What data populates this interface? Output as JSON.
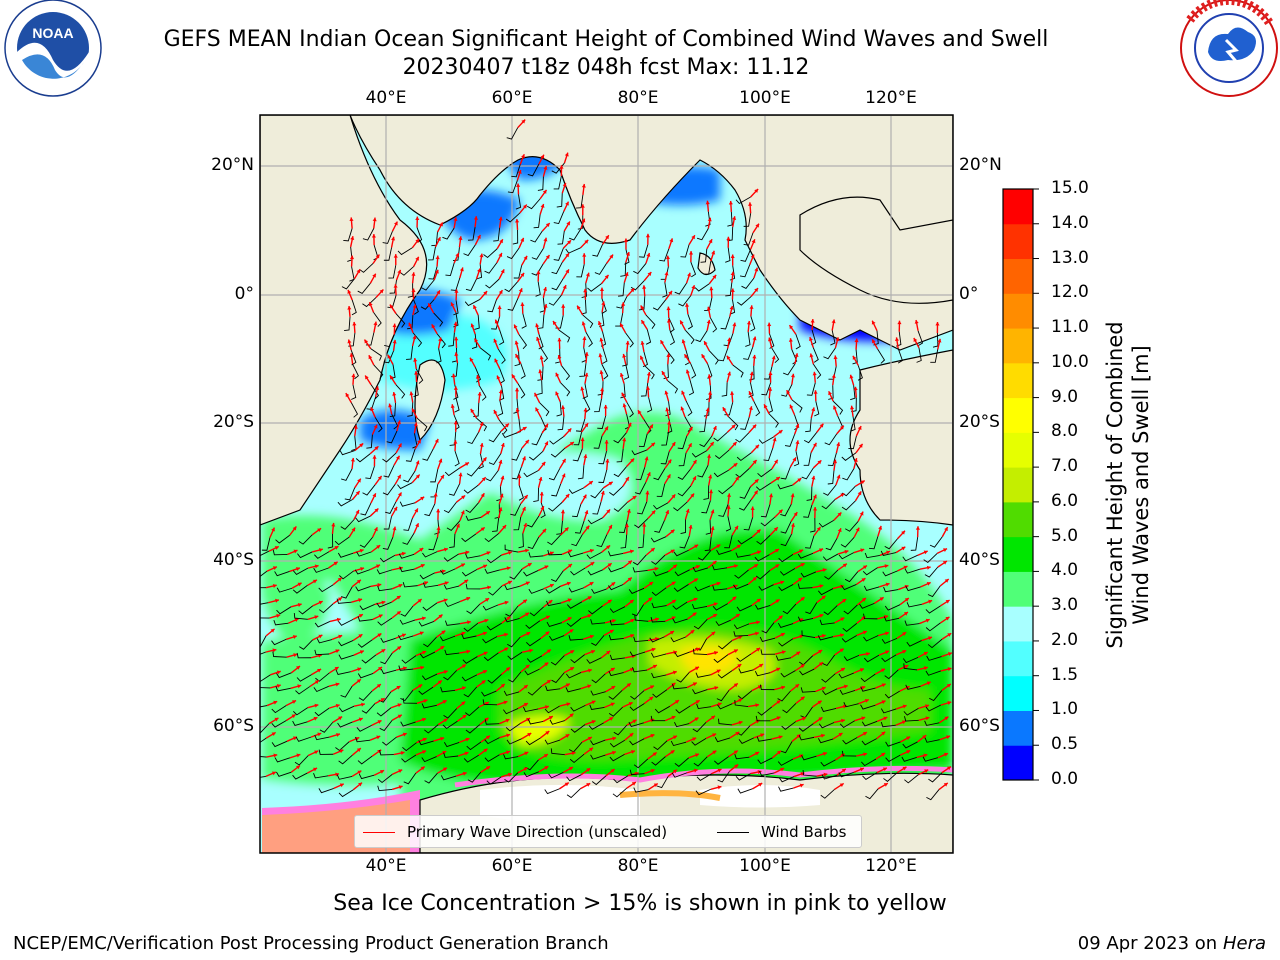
{
  "title": {
    "line1": "GEFS MEAN Indian Ocean Significant Height of Combined Wind Waves and Swell",
    "line2": "20230407 t18z 048h fcst   Max: 11.12"
  },
  "logos": {
    "left": "noaa-logo",
    "right": "national-weather-service-logo"
  },
  "map": {
    "lon_ticks": [
      "40°E",
      "60°E",
      "80°E",
      "100°E",
      "120°E"
    ],
    "lat_ticks": [
      "20°N",
      "0°",
      "20°S",
      "40°S",
      "60°S"
    ],
    "lon_range": [
      20,
      130
    ],
    "lat_range": [
      -75,
      27
    ],
    "land_color": "#efedda",
    "grid_color": "#b0b0b0"
  },
  "legend": {
    "wave_label": "Primary Wave Direction (unscaled)",
    "barb_label": "Wind Barbs",
    "wave_color": "#ff0000",
    "barb_color": "#000000"
  },
  "colorbar": {
    "label_line1": "Significant Height of Combined",
    "label_line2": "Wind Waves and Swell [m]",
    "ticks": [
      "0.0",
      "0.5",
      "1.0",
      "1.5",
      "2.0",
      "3.0",
      "4.0",
      "5.0",
      "6.0",
      "7.0",
      "8.0",
      "9.0",
      "10.0",
      "11.0",
      "12.0",
      "13.0",
      "14.0",
      "15.0"
    ],
    "colors": [
      "#0000ff",
      "#0a78ff",
      "#00ffff",
      "#52ffff",
      "#a8ffff",
      "#50ff78",
      "#00e600",
      "#50dc00",
      "#c4ee00",
      "#e6ff00",
      "#ffff00",
      "#ffdc00",
      "#ffb400",
      "#ff8c00",
      "#ff6400",
      "#ff3200",
      "#ff0000"
    ]
  },
  "footer": {
    "sea_ice_note": "Sea Ice Concentration > 15% is shown in pink to yellow",
    "credit_left": "NCEP/EMC/Verification Post Processing Product Generation Branch",
    "credit_date": "09 Apr 2023 on",
    "credit_host": "Hera"
  }
}
